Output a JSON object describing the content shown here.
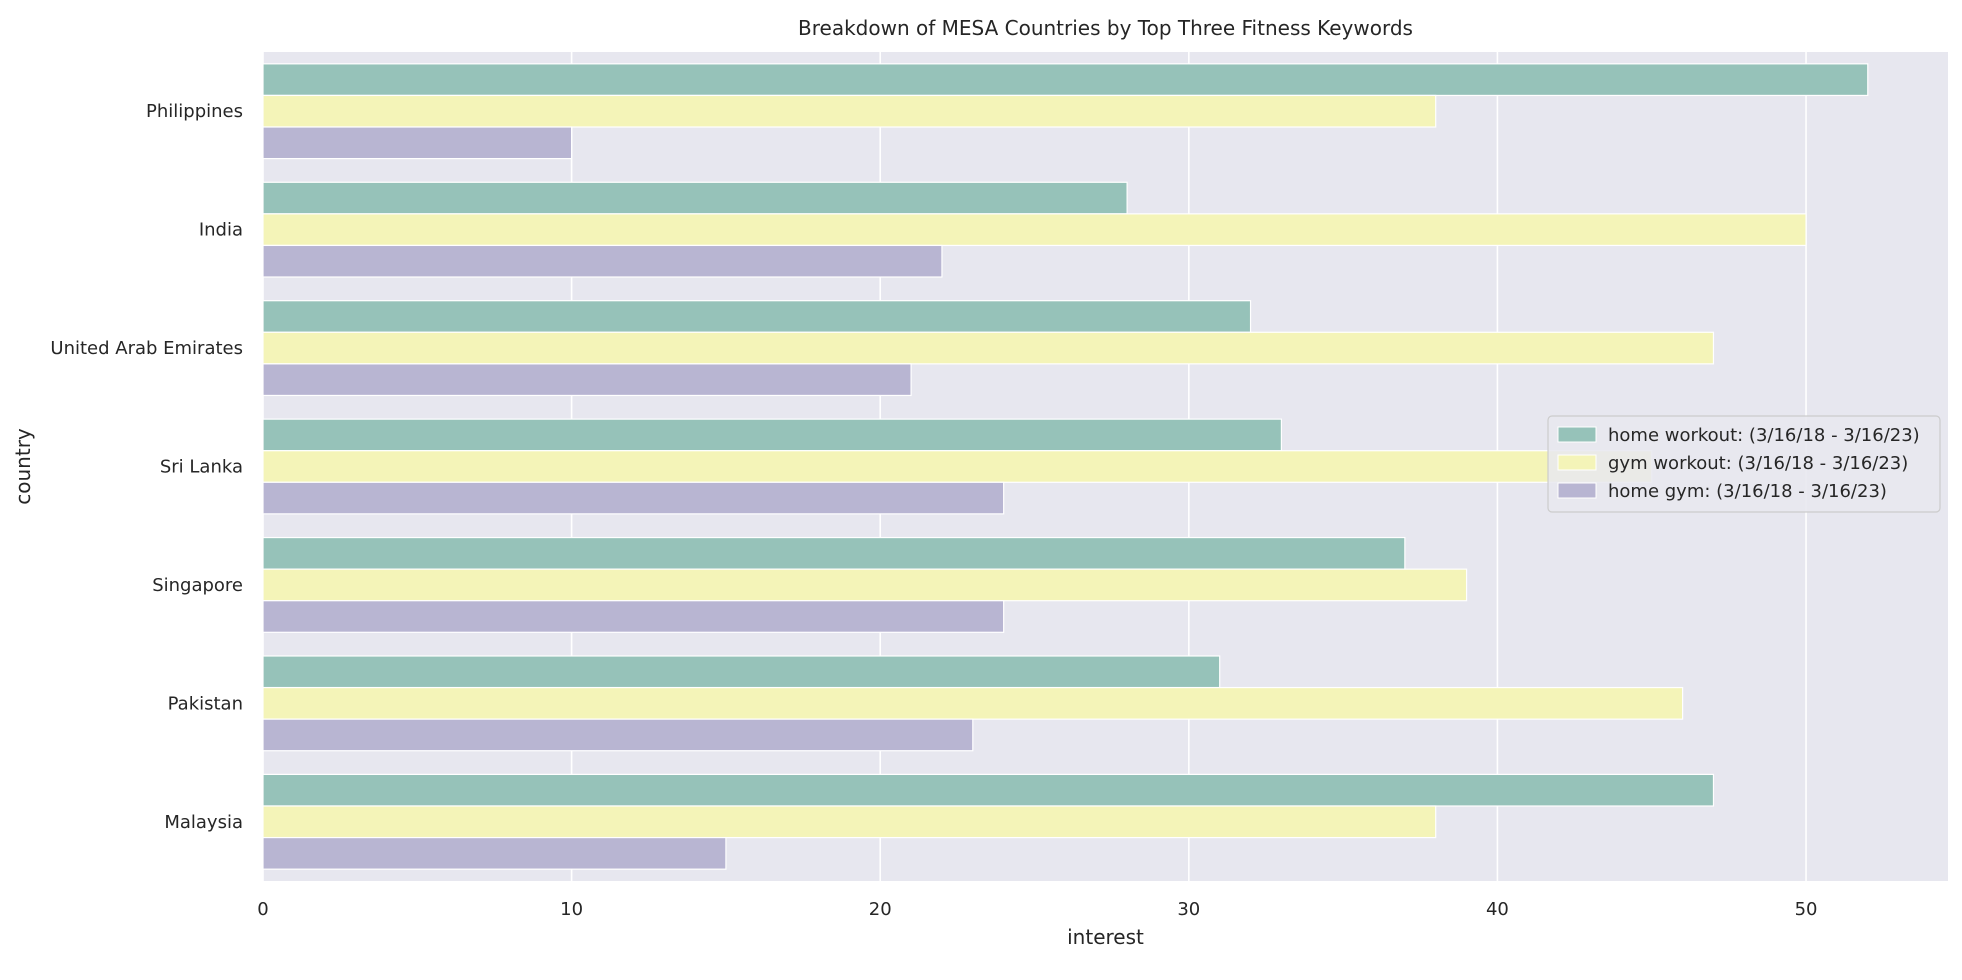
{
  "chart_data": {
    "type": "bar",
    "orientation": "horizontal",
    "title": "Breakdown of MESA Countries by Top Three Fitness Keywords",
    "xlabel": "interest",
    "ylabel": "country",
    "xlim": [
      0,
      54.6
    ],
    "xticks": [
      "0",
      "10",
      "20",
      "30",
      "40",
      "50"
    ],
    "categories": [
      "Philippines",
      "India",
      "United Arab Emirates",
      "Sri Lanka",
      "Singapore",
      "Pakistan",
      "Malaysia"
    ],
    "series": [
      {
        "name": "home workout: (3/16/18 - 3/16/23)",
        "color": "#96c2b9",
        "values": [
          52,
          28,
          32,
          33,
          37,
          31,
          47
        ]
      },
      {
        "name": "gym workout: (3/16/18 - 3/16/23)",
        "color": "#f4f4b8",
        "values": [
          38,
          50,
          47,
          45,
          39,
          46,
          38
        ]
      },
      {
        "name": "home gym: (3/16/18 - 3/16/23)",
        "color": "#b8b5d2",
        "values": [
          10,
          22,
          21,
          24,
          24,
          23,
          15
        ]
      }
    ],
    "grid": true,
    "legend_position": "center-right",
    "plot_background": "#e7e7ef"
  }
}
